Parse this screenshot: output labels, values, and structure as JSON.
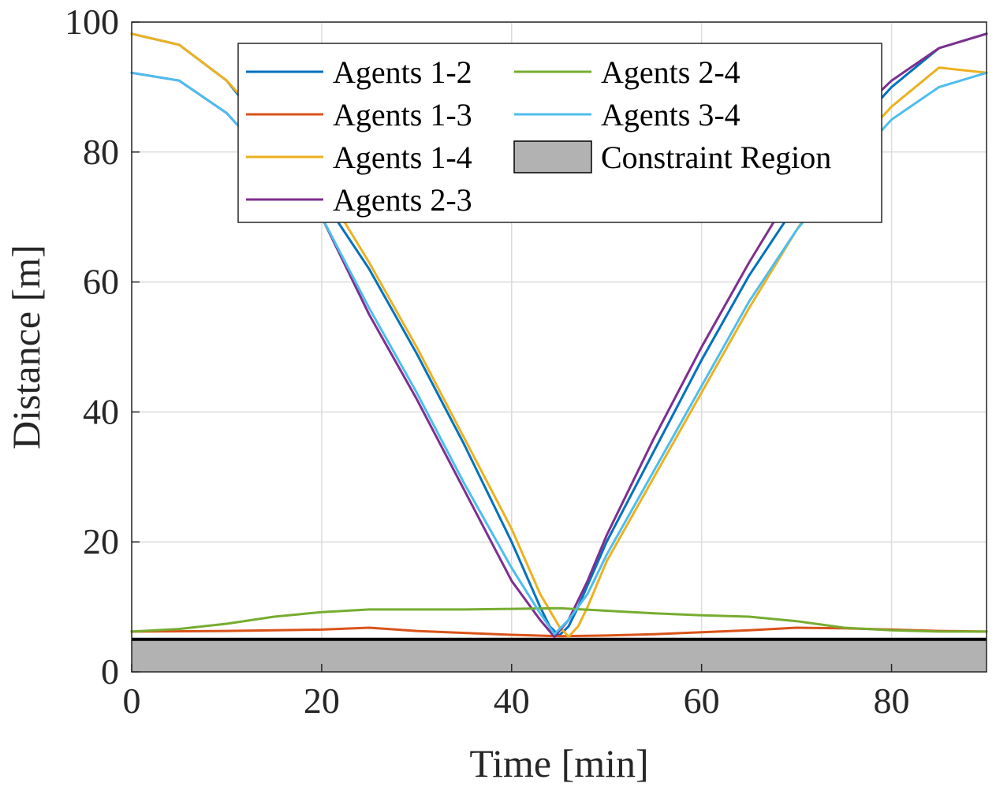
{
  "chart_data": {
    "type": "line",
    "title": "",
    "xlabel": "Time [min]",
    "ylabel": "Distance [m]",
    "xlim": [
      0,
      90
    ],
    "ylim": [
      0,
      100
    ],
    "x_ticks": [
      "0",
      "20",
      "40",
      "60",
      "80"
    ],
    "y_ticks": [
      "0",
      "20",
      "40",
      "60",
      "80",
      "100"
    ],
    "grid": true,
    "legend_position": "top-center",
    "legend_columns": 2,
    "series": [
      {
        "name": "Agents 1-2",
        "color": "#0072BD",
        "points": [
          [
            0,
            98.2
          ],
          [
            5,
            96.5
          ],
          [
            10,
            91
          ],
          [
            15,
            82
          ],
          [
            20,
            73
          ],
          [
            25,
            62
          ],
          [
            30,
            49
          ],
          [
            35,
            35
          ],
          [
            40,
            20
          ],
          [
            43,
            10
          ],
          [
            44,
            7
          ],
          [
            45,
            5.6
          ],
          [
            46,
            7
          ],
          [
            47,
            10
          ],
          [
            50,
            20
          ],
          [
            55,
            34
          ],
          [
            60,
            48
          ],
          [
            65,
            61
          ],
          [
            70,
            72
          ],
          [
            75,
            82
          ],
          [
            80,
            90
          ],
          [
            85,
            96
          ],
          [
            90,
            98.2
          ]
        ]
      },
      {
        "name": "Agents 1-3",
        "color": "#D95319",
        "points": [
          [
            0,
            6.2
          ],
          [
            10,
            6.3
          ],
          [
            20,
            6.5
          ],
          [
            25,
            6.8
          ],
          [
            30,
            6.3
          ],
          [
            35,
            6.0
          ],
          [
            40,
            5.7
          ],
          [
            45,
            5.5
          ],
          [
            50,
            5.6
          ],
          [
            55,
            5.8
          ],
          [
            60,
            6.1
          ],
          [
            65,
            6.4
          ],
          [
            70,
            6.8
          ],
          [
            75,
            6.7
          ],
          [
            80,
            6.5
          ],
          [
            85,
            6.3
          ],
          [
            90,
            6.2
          ]
        ]
      },
      {
        "name": "Agents 1-4",
        "color": "#EDB120",
        "points": [
          [
            0,
            98.2
          ],
          [
            5,
            96.5
          ],
          [
            10,
            91
          ],
          [
            15,
            83
          ],
          [
            20,
            75
          ],
          [
            25,
            63
          ],
          [
            30,
            50
          ],
          [
            35,
            36
          ],
          [
            40,
            22
          ],
          [
            43,
            12
          ],
          [
            45,
            7
          ],
          [
            46,
            5.4
          ],
          [
            47,
            7
          ],
          [
            48,
            10
          ],
          [
            50,
            17
          ],
          [
            55,
            30
          ],
          [
            60,
            43
          ],
          [
            65,
            56
          ],
          [
            70,
            68
          ],
          [
            75,
            79
          ],
          [
            80,
            87
          ],
          [
            85,
            93
          ],
          [
            90,
            92.2
          ]
        ]
      },
      {
        "name": "Agents 2-3",
        "color": "#7E2F8E",
        "points": [
          [
            0,
            92.2
          ],
          [
            5,
            91
          ],
          [
            10,
            86
          ],
          [
            15,
            78
          ],
          [
            20,
            70
          ],
          [
            25,
            55
          ],
          [
            30,
            42
          ],
          [
            35,
            28
          ],
          [
            40,
            14
          ],
          [
            43,
            8
          ],
          [
            44.5,
            5.4
          ],
          [
            46,
            8
          ],
          [
            48,
            14
          ],
          [
            50,
            21
          ],
          [
            55,
            36
          ],
          [
            60,
            50
          ],
          [
            65,
            63
          ],
          [
            70,
            75
          ],
          [
            75,
            84
          ],
          [
            80,
            91
          ],
          [
            85,
            96
          ],
          [
            90,
            98.2
          ]
        ]
      },
      {
        "name": "Agents 2-4",
        "color": "#77AC30",
        "points": [
          [
            0,
            6.2
          ],
          [
            5,
            6.6
          ],
          [
            10,
            7.4
          ],
          [
            15,
            8.5
          ],
          [
            20,
            9.2
          ],
          [
            25,
            9.6
          ],
          [
            30,
            9.6
          ],
          [
            35,
            9.6
          ],
          [
            40,
            9.7
          ],
          [
            45,
            9.8
          ],
          [
            50,
            9.4
          ],
          [
            55,
            9.0
          ],
          [
            60,
            8.7
          ],
          [
            65,
            8.5
          ],
          [
            70,
            7.8
          ],
          [
            75,
            6.8
          ],
          [
            80,
            6.4
          ],
          [
            85,
            6.2
          ],
          [
            90,
            6.2
          ]
        ]
      },
      {
        "name": "Agents 3-4",
        "color": "#4DBEEE",
        "points": [
          [
            0,
            92.2
          ],
          [
            5,
            91
          ],
          [
            10,
            86
          ],
          [
            15,
            78
          ],
          [
            20,
            70
          ],
          [
            25,
            56
          ],
          [
            30,
            43
          ],
          [
            35,
            29
          ],
          [
            40,
            16
          ],
          [
            43,
            9
          ],
          [
            44.5,
            5.8
          ],
          [
            46,
            8
          ],
          [
            48,
            12
          ],
          [
            50,
            18
          ],
          [
            55,
            31
          ],
          [
            60,
            44
          ],
          [
            65,
            57
          ],
          [
            70,
            68
          ],
          [
            75,
            77
          ],
          [
            80,
            85
          ],
          [
            85,
            90
          ],
          [
            90,
            92.2
          ]
        ]
      }
    ],
    "constraint_region": {
      "name": "Constraint Region",
      "y_min": 0,
      "y_max": 5,
      "fill": "#b2b2b2",
      "edge": "#000000"
    }
  }
}
